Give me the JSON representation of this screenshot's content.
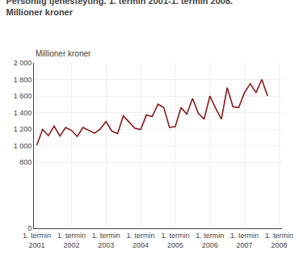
{
  "chart_data": {
    "type": "line",
    "title": "Personlig tjenesteyting. 1. termin 2001-1. termin 2008.",
    "subtitle": "Millioner kroner",
    "ylabel": "Millioner kroner",
    "color": "#8B1A1A",
    "categories": [
      "1. termin\n2001",
      null,
      null,
      null,
      null,
      null,
      "1. termin\n2002",
      null,
      null,
      null,
      null,
      null,
      "1. termin\n2003",
      null,
      null,
      null,
      null,
      null,
      "1. termin\n2004",
      null,
      null,
      null,
      null,
      null,
      "1. termin\n2005",
      null,
      null,
      null,
      null,
      null,
      "1. termin\n2006",
      null,
      null,
      null,
      null,
      null,
      "1. termin\n2007",
      null,
      null,
      null,
      null,
      null,
      "1. termin\n2008"
    ],
    "values": [
      1005,
      1195,
      1120,
      1235,
      1115,
      1220,
      1185,
      1110,
      1220,
      1185,
      1150,
      1200,
      1290,
      1175,
      1145,
      1360,
      1290,
      1210,
      1195,
      1370,
      1350,
      1500,
      1460,
      1220,
      1230,
      1460,
      1380,
      1570,
      1390,
      1320,
      1600,
      1450,
      1320,
      1700,
      1470,
      1460,
      1640,
      1750,
      1640,
      1800,
      1600,
      null,
      null
    ],
    "ylim": [
      0,
      2000
    ],
    "yticks": [
      0,
      800,
      {
        "value": 1000,
        "label": "1 000"
      },
      {
        "value": 1200,
        "label": "1 200"
      },
      {
        "value": 1400,
        "label": "1 400"
      },
      {
        "value": 1600,
        "label": "1 600"
      },
      {
        "value": 1800,
        "label": "1 800"
      },
      {
        "value": 2000,
        "label": "2 000"
      }
    ],
    "grid": true
  }
}
